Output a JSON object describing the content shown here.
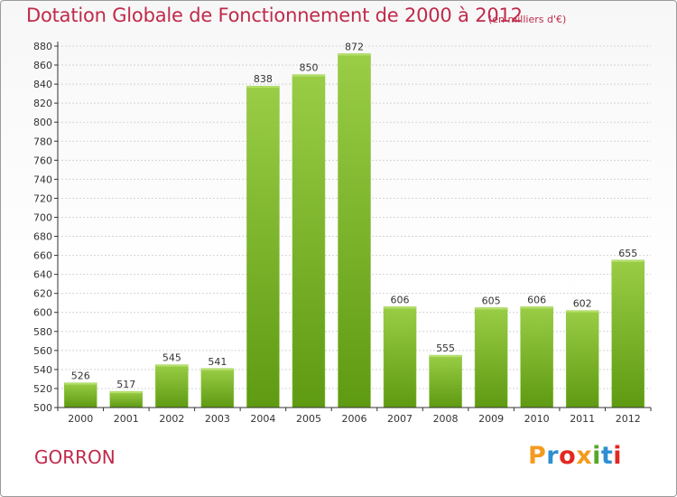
{
  "header": {
    "title": "Dotation Globale de Fonctionnement de 2000 à 2012",
    "subtitle": "(en milliers d'€)"
  },
  "footer": {
    "commune": "GORRON",
    "logo_text": "Proxiti",
    "logo_colors": [
      "#f39b1f",
      "#2e8fd0",
      "#e4271f",
      "#f39b1f",
      "#55a82a",
      "#2e8fd0",
      "#e4271f"
    ]
  },
  "colors": {
    "accent": "#c02a4a",
    "bar_light": "#9acd46",
    "bar_dark": "#5e9a12",
    "axis": "#333333",
    "grid": "#d4d4d4"
  },
  "chart_data": {
    "type": "bar",
    "title": "Dotation Globale de Fonctionnement de 2000 à 2012",
    "subtitle": "(en milliers d'€)",
    "categories": [
      "2000",
      "2001",
      "2002",
      "2003",
      "2004",
      "2005",
      "2006",
      "2007",
      "2008",
      "2009",
      "2010",
      "2011",
      "2012"
    ],
    "values": [
      526,
      517,
      545,
      541,
      838,
      850,
      872,
      606,
      555,
      605,
      606,
      602,
      655
    ],
    "xlabel": "",
    "ylabel": "",
    "ylim": [
      500,
      880
    ],
    "yticks": [
      500,
      520,
      540,
      560,
      580,
      600,
      620,
      640,
      660,
      680,
      700,
      720,
      740,
      760,
      780,
      800,
      820,
      840,
      860,
      880
    ],
    "grid": true,
    "data_labels": true
  }
}
